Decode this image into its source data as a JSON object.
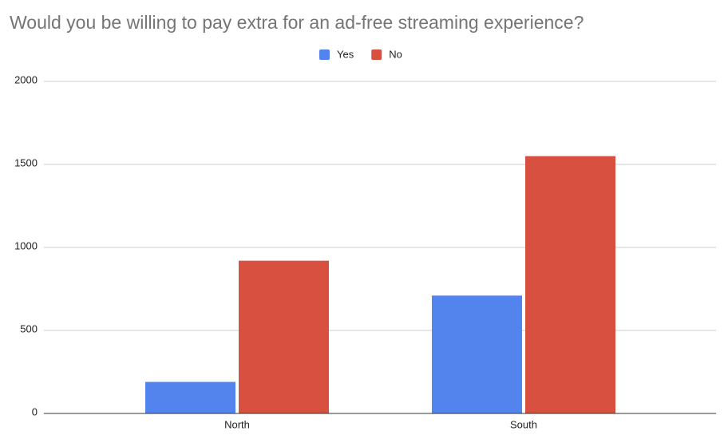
{
  "chart_data": {
    "type": "bar",
    "title": "Would you be willing to pay extra for an ad-free streaming experience?",
    "categories": [
      "North",
      "South"
    ],
    "series": [
      {
        "name": "Yes",
        "color": "#5383ec",
        "values": [
          190,
          710
        ]
      },
      {
        "name": "No",
        "color": "#d85140",
        "values": [
          920,
          1550
        ]
      }
    ],
    "ylim": [
      0,
      2000
    ],
    "yticks": [
      0,
      500,
      1000,
      1500,
      2000
    ],
    "grid": true,
    "legend": "top"
  }
}
